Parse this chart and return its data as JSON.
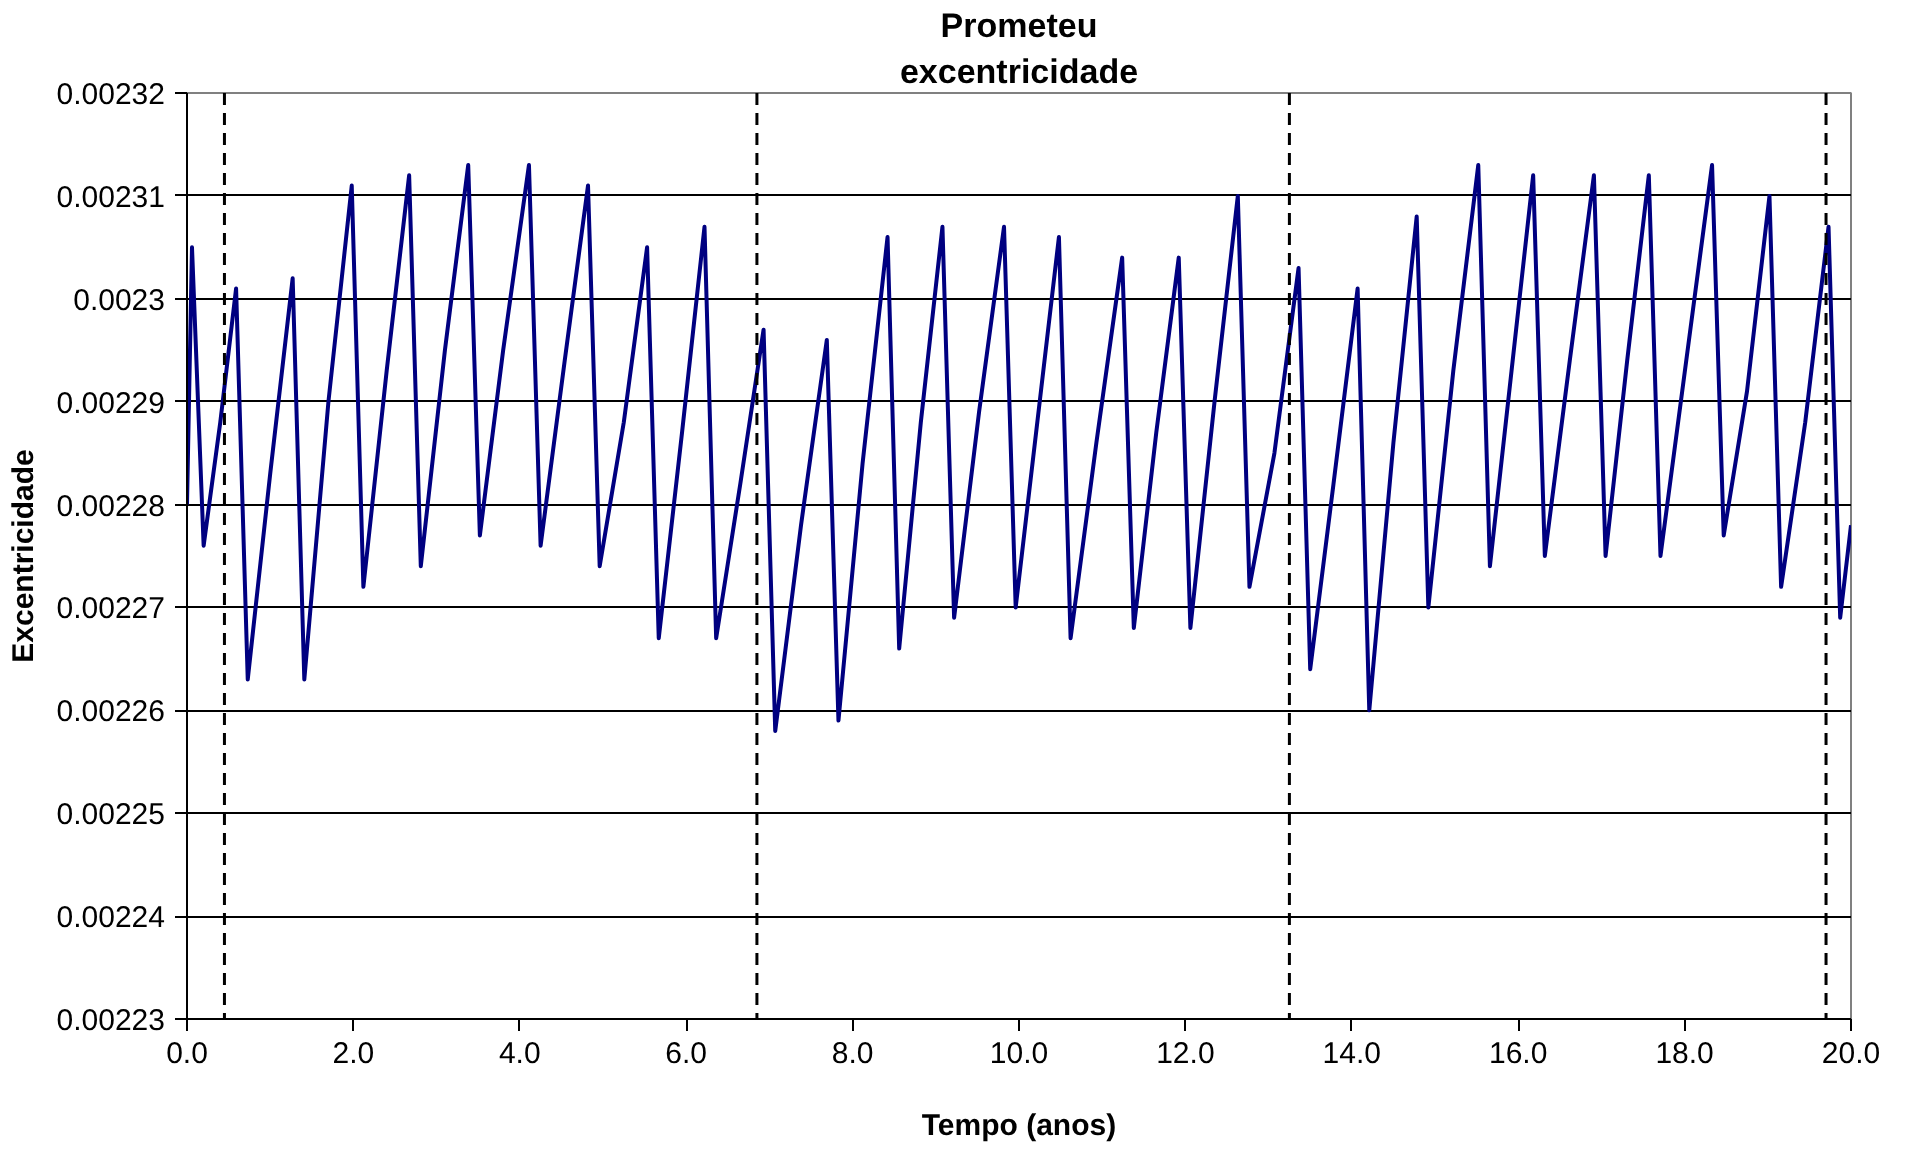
{
  "chart_data": {
    "type": "line",
    "title": "Prometeu",
    "subtitle": "excentricidade",
    "xlabel": "Tempo (anos)",
    "ylabel": "Excentricidade",
    "xlim": [
      0,
      20
    ],
    "ylim": [
      0.00223,
      0.00232
    ],
    "xticks": [
      {
        "value": 0,
        "label": "0.0"
      },
      {
        "value": 2,
        "label": "2.0"
      },
      {
        "value": 4,
        "label": "4.0"
      },
      {
        "value": 6,
        "label": "6.0"
      },
      {
        "value": 8,
        "label": "8.0"
      },
      {
        "value": 10,
        "label": "10.0"
      },
      {
        "value": 12,
        "label": "12.0"
      },
      {
        "value": 14,
        "label": "14.0"
      },
      {
        "value": 16,
        "label": "16.0"
      },
      {
        "value": 18,
        "label": "18.0"
      },
      {
        "value": 20,
        "label": "20.0"
      }
    ],
    "yticks": [
      0.00223,
      0.00224,
      0.00225,
      0.00226,
      0.00227,
      0.00228,
      0.00229,
      0.0023,
      0.00231,
      0.00232
    ],
    "grid": "y",
    "marker": "none",
    "line_style": "solid",
    "x": [
      0,
      0.06,
      0.2,
      0.4,
      0.59,
      0.73,
      1.0,
      1.27,
      1.41,
      1.7,
      1.98,
      2.12,
      2.4,
      2.67,
      2.81,
      3.1,
      3.38,
      3.52,
      3.8,
      4.11,
      4.25,
      4.54,
      4.82,
      4.96,
      5.25,
      5.53,
      5.67,
      5.95,
      6.22,
      6.36,
      6.65,
      6.93,
      7.07,
      7.38,
      7.69,
      7.83,
      8.12,
      8.42,
      8.56,
      8.82,
      9.08,
      9.22,
      9.52,
      9.82,
      9.96,
      10.22,
      10.48,
      10.62,
      10.93,
      11.24,
      11.38,
      11.65,
      11.92,
      12.06,
      12.35,
      12.63,
      12.77,
      13.07,
      13.36,
      13.5,
      13.78,
      14.07,
      14.21,
      14.5,
      14.78,
      14.92,
      15.22,
      15.52,
      15.66,
      15.92,
      16.18,
      16.32,
      16.62,
      16.91,
      17.05,
      17.31,
      17.57,
      17.71,
      18.02,
      18.33,
      18.47,
      18.75,
      19.02,
      19.16,
      19.45,
      19.73,
      19.87,
      20.0
    ],
    "series": [
      {
        "color": "#000080",
        "values": [
          0.00228,
          0.002305,
          0.002276,
          0.002288,
          0.002301,
          0.002263,
          0.002283,
          0.002302,
          0.002263,
          0.00229,
          0.002311,
          0.002272,
          0.002293,
          0.002312,
          0.002274,
          0.002295,
          0.002313,
          0.002277,
          0.002295,
          0.002313,
          0.002276,
          0.002294,
          0.002311,
          0.002274,
          0.002288,
          0.002305,
          0.002267,
          0.002287,
          0.002307,
          0.002267,
          0.002282,
          0.002297,
          0.002258,
          0.002278,
          0.002296,
          0.002259,
          0.002284,
          0.002306,
          0.002266,
          0.002288,
          0.002307,
          0.002269,
          0.002289,
          0.002307,
          0.00227,
          0.002288,
          0.002306,
          0.002267,
          0.002286,
          0.002304,
          0.002268,
          0.002287,
          0.002304,
          0.002268,
          0.00229,
          0.00231,
          0.002272,
          0.002285,
          0.002303,
          0.002264,
          0.002282,
          0.002301,
          0.00226,
          0.002286,
          0.002308,
          0.00227,
          0.002293,
          0.002313,
          0.002274,
          0.002293,
          0.002312,
          0.002275,
          0.002294,
          0.002312,
          0.002275,
          0.002294,
          0.002312,
          0.002275,
          0.002294,
          0.002313,
          0.002277,
          0.002291,
          0.00231,
          0.002272,
          0.002288,
          0.002307,
          0.002269,
          0.002278
        ]
      }
    ],
    "ref_lines": [
      {
        "axis": "x",
        "value": 0.45,
        "color": "#000000",
        "line_style": "dashed"
      },
      {
        "axis": "x",
        "value": 6.85,
        "color": "#000000",
        "line_style": "dashed"
      },
      {
        "axis": "x",
        "value": 13.25,
        "color": "#000000",
        "line_style": "dashed"
      },
      {
        "axis": "x",
        "value": 19.7,
        "color": "#000000",
        "line_style": "dashed"
      }
    ]
  }
}
